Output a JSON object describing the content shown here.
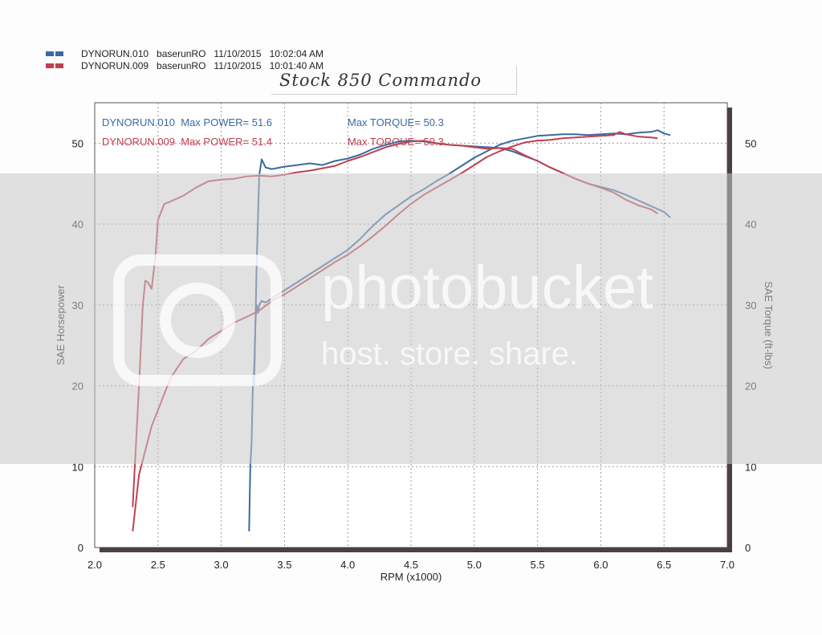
{
  "legend": [
    {
      "file": "DYNORUN.010",
      "run": "baserunRO",
      "date": "11/10/2015",
      "time": "10:02:04 AM",
      "color": "#3a6aa0"
    },
    {
      "file": "DYNORUN.009",
      "run": "baserunRO",
      "date": "11/10/2015",
      "time": "10:01:40 AM",
      "color": "#c0404f"
    }
  ],
  "handwritten_note": "Stock 850 Commando",
  "watermark": {
    "brand": "photobucket",
    "tagline": "host. store. share."
  },
  "chart_data": {
    "type": "line",
    "xlabel": "RPM (x1000)",
    "ylabel_left": "SAE Horsepower",
    "ylabel_right": "SAE Torque (ft-lbs)",
    "xlim": [
      2.0,
      7.0
    ],
    "ylim_left": [
      0,
      55
    ],
    "ylim_right": [
      0,
      55
    ],
    "x_ticks": [
      "2.0",
      "2.5",
      "3.0",
      "3.5",
      "4.0",
      "4.5",
      "5.0",
      "5.5",
      "6.0",
      "6.5",
      "7.0"
    ],
    "y_ticks_left": [
      "0",
      "10",
      "20",
      "30",
      "40",
      "50"
    ],
    "y_ticks_right": [
      "0",
      "10",
      "20",
      "30",
      "40",
      "50"
    ],
    "grid": true,
    "annotations": [
      {
        "text": "DYNORUN.010  Max POWER= 51.6",
        "color": "#3a6aa0"
      },
      {
        "text": "Max TORQUE= 50.3",
        "color": "#3a6aa0"
      },
      {
        "text": "DYNORUN.009  Max POWER= 51.4",
        "color": "#c0404f"
      },
      {
        "text": "Max TORQUE= 50.3",
        "color": "#c0404f"
      }
    ],
    "series": [
      {
        "run": "DYNORUN.010",
        "quantity": "SAE Horsepower",
        "color": "#3a6aa0",
        "x": [
          3.22,
          3.23,
          3.24,
          3.25,
          3.26,
          3.27,
          3.28,
          3.29,
          3.3,
          3.32,
          3.35,
          3.4,
          3.5,
          3.6,
          3.7,
          3.8,
          3.9,
          4.0,
          4.1,
          4.2,
          4.3,
          4.4,
          4.5,
          4.6,
          4.7,
          4.8,
          4.9,
          5.0,
          5.1,
          5.2,
          5.3,
          5.4,
          5.5,
          5.6,
          5.7,
          5.8,
          5.9,
          6.0,
          6.1,
          6.2,
          6.3,
          6.4,
          6.45,
          6.5,
          6.55
        ],
        "y": [
          2,
          10,
          13,
          20,
          22,
          28,
          30,
          29,
          30,
          30.5,
          30.3,
          30.8,
          31.8,
          32.8,
          33.8,
          34.8,
          35.8,
          36.8,
          38.2,
          39.8,
          41.2,
          42.3,
          43.4,
          44.3,
          45.3,
          46.2,
          47.2,
          48.2,
          49.0,
          49.8,
          50.3,
          50.6,
          50.9,
          51.0,
          51.1,
          51.1,
          51.0,
          51.1,
          51.2,
          51.1,
          51.3,
          51.4,
          51.6,
          51.2,
          51.0
        ]
      },
      {
        "run": "DYNORUN.010",
        "quantity": "SAE Torque (ft-lbs)",
        "color": "#3a6aa0",
        "x": [
          3.26,
          3.28,
          3.3,
          3.32,
          3.35,
          3.4,
          3.5,
          3.6,
          3.7,
          3.8,
          3.9,
          4.0,
          4.1,
          4.2,
          4.3,
          4.4,
          4.5,
          4.6,
          4.7,
          4.8,
          4.9,
          5.0,
          5.1,
          5.2,
          5.3,
          5.4,
          5.5,
          5.6,
          5.7,
          5.8,
          5.9,
          6.0,
          6.1,
          6.2,
          6.3,
          6.4,
          6.5,
          6.55
        ],
        "y": [
          20,
          35,
          46,
          48,
          47,
          46.8,
          47.1,
          47.3,
          47.5,
          47.3,
          47.8,
          48.1,
          48.6,
          49.3,
          49.8,
          50.2,
          50.3,
          50.2,
          50.0,
          49.8,
          49.7,
          49.6,
          49.5,
          49.4,
          49.0,
          48.4,
          47.8,
          47.0,
          46.3,
          45.6,
          45.0,
          44.6,
          44.2,
          43.6,
          42.9,
          42.2,
          41.5,
          40.8
        ]
      },
      {
        "run": "DYNORUN.009",
        "quantity": "SAE Horsepower",
        "color": "#c0404f",
        "x": [
          2.3,
          2.35,
          2.4,
          2.45,
          2.5,
          2.55,
          2.6,
          2.7,
          2.8,
          2.9,
          3.0,
          3.1,
          3.2,
          3.3,
          3.4,
          3.5,
          3.6,
          3.7,
          3.8,
          3.9,
          4.0,
          4.1,
          4.2,
          4.3,
          4.4,
          4.5,
          4.6,
          4.7,
          4.8,
          4.9,
          5.0,
          5.1,
          5.2,
          5.3,
          5.4,
          5.5,
          5.6,
          5.7,
          5.8,
          5.9,
          6.0,
          6.1,
          6.15,
          6.2,
          6.3,
          6.4,
          6.45
        ],
        "y": [
          2,
          9,
          12,
          15,
          17,
          19,
          21,
          23.3,
          24.3,
          25.8,
          26.8,
          27.8,
          28.5,
          29.3,
          30.5,
          31.3,
          32.3,
          33.3,
          34.3,
          35.3,
          36.2,
          37.3,
          38.5,
          39.8,
          41.2,
          42.5,
          43.6,
          44.5,
          45.4,
          46.3,
          47.3,
          48.3,
          49.0,
          49.6,
          50.1,
          50.3,
          50.4,
          50.6,
          50.7,
          50.8,
          50.9,
          51.0,
          51.4,
          51.1,
          50.8,
          50.7,
          50.6
        ]
      },
      {
        "run": "DYNORUN.009",
        "quantity": "SAE Torque (ft-lbs)",
        "color": "#c0404f",
        "x": [
          2.3,
          2.35,
          2.38,
          2.4,
          2.42,
          2.45,
          2.48,
          2.5,
          2.55,
          2.6,
          2.7,
          2.8,
          2.9,
          3.0,
          3.1,
          3.2,
          3.3,
          3.4,
          3.5,
          3.6,
          3.7,
          3.8,
          3.9,
          4.0,
          4.1,
          4.2,
          4.3,
          4.4,
          4.5,
          4.6,
          4.7,
          4.8,
          4.9,
          5.0,
          5.1,
          5.2,
          5.3,
          5.4,
          5.5,
          5.6,
          5.7,
          5.8,
          5.9,
          6.0,
          6.1,
          6.2,
          6.3,
          6.4,
          6.45
        ],
        "y": [
          5,
          20,
          30,
          33,
          32.8,
          32,
          36,
          40.5,
          42.5,
          42.8,
          43.5,
          44.5,
          45.3,
          45.5,
          45.6,
          45.9,
          46.0,
          45.9,
          46.1,
          46.4,
          46.6,
          46.9,
          47.2,
          47.8,
          48.3,
          48.9,
          49.5,
          49.9,
          50.2,
          50.3,
          50.0,
          49.8,
          49.7,
          49.5,
          49.3,
          49.4,
          49.3,
          48.5,
          47.8,
          47.0,
          46.3,
          45.6,
          45.0,
          44.5,
          43.9,
          43.0,
          42.3,
          41.8,
          41.3
        ]
      }
    ]
  }
}
